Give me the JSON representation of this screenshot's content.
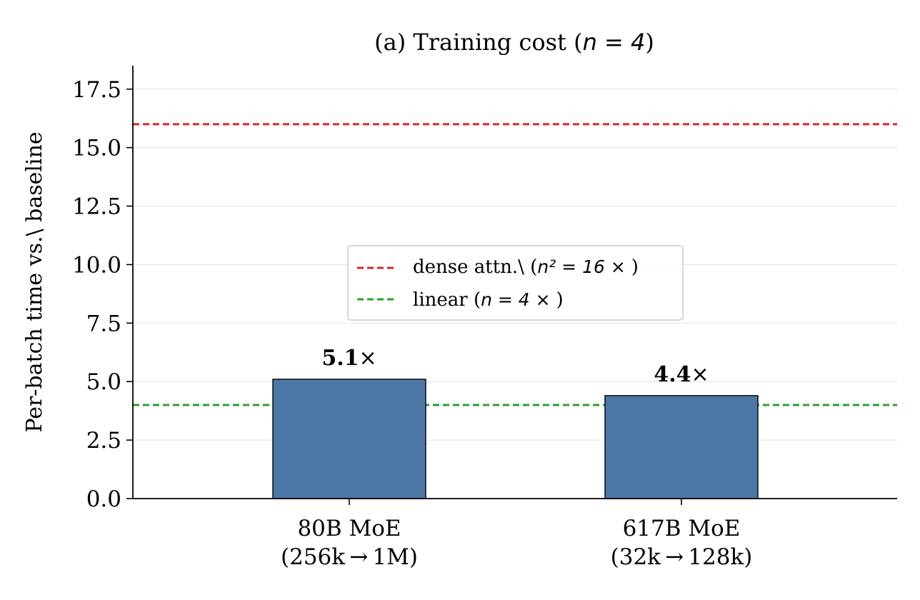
{
  "chart_data": {
    "type": "bar",
    "title_prefix": "(a) Training cost (",
    "title_math": "n = 4",
    "title_suffix": ")",
    "ylabel": "Per-batch time vs.\\ baseline",
    "ylim": [
      0,
      18.5
    ],
    "yticks": [
      0.0,
      2.5,
      5.0,
      7.5,
      10.0,
      12.5,
      15.0,
      17.5
    ],
    "ytick_labels": [
      "0.0",
      "2.5",
      "5.0",
      "7.5",
      "10.0",
      "12.5",
      "15.0",
      "17.5"
    ],
    "grid": "horizontal",
    "categories": [
      {
        "line1": "80B MoE",
        "line2": "(256k → 1M)"
      },
      {
        "line1": "617B MoE",
        "line2": "(32k → 128k)"
      }
    ],
    "values": [
      5.1,
      4.4
    ],
    "bar_labels": [
      {
        "num": "5.1",
        "sym": "×"
      },
      {
        "num": "4.4",
        "sym": "×"
      }
    ],
    "bar_color": "#4c78a8",
    "reference_lines": [
      {
        "value": 16,
        "color": "#d62728",
        "legend_text": "dense attn.\\ (",
        "legend_math": "n² = 16 × ",
        "legend_close": ")"
      },
      {
        "value": 4,
        "color": "#2ca02c",
        "legend_text": "linear (",
        "legend_math": "n = 4 × ",
        "legend_close": ")"
      }
    ],
    "legend_placement": "center"
  }
}
